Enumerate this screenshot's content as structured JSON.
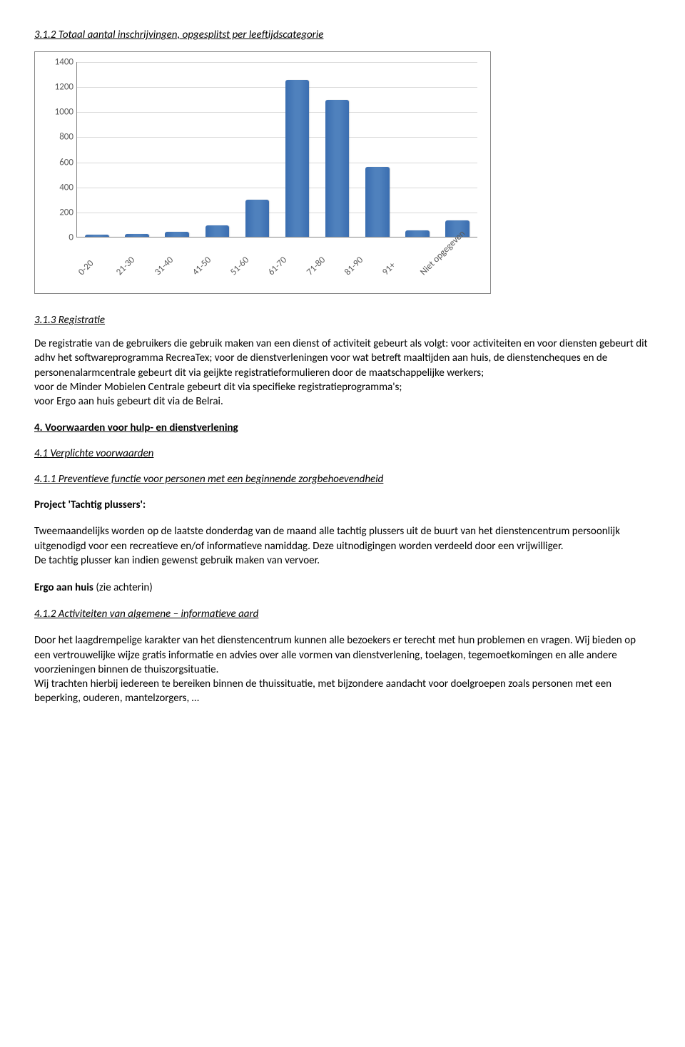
{
  "section_312_title": "3.1.2  Totaal aantal inschrijvingen, opgesplitst per  leeftijdscategorie",
  "chart": {
    "type": "bar",
    "categories": [
      "0-20",
      "21-30",
      "31-40",
      "41-50",
      "51-60",
      "61-70",
      "71-80",
      "81-90",
      "91+",
      "Niet opgegeven"
    ],
    "values": [
      20,
      25,
      40,
      90,
      300,
      1260,
      1100,
      560,
      50,
      130
    ],
    "ylim": [
      0,
      1400
    ],
    "ytick_step": 200,
    "yticks": [
      "0",
      "200",
      "400",
      "600",
      "800",
      "1000",
      "1200",
      "1400"
    ],
    "bar_color": "#4f81bd",
    "grid_color": "#d9d9d9",
    "axis_color": "#888888",
    "text_color": "#595959",
    "background_color": "#ffffff",
    "tick_fontsize": 13,
    "xtick_rotation": -45
  },
  "section_313_title": "3.1.3  Registratie",
  "registratie_para": "De registratie van de gebruikers die gebruik maken van een dienst of activiteit gebeurt als volgt: voor activiteiten en voor diensten gebeurt dit adhv het softwareprogramma RecreaTex; voor de dienstverleningen voor wat betreft maaltijden aan huis, de dienstencheques en de personenalarmcentrale gebeurt dit via geijkte registratieformulieren door de maatschappelijke werkers;\nvoor de Minder Mobielen Centrale gebeurt dit via specifieke registratieprogramma's;\nvoor Ergo aan huis gebeurt dit via de Belrai.",
  "section_4_title": "4. Voorwaarden voor  hulp- en dienstverlening",
  "section_41_title": "4.1 Verplichte voorwaarden",
  "section_411_title": "4.1.1  Preventieve functie voor personen met een beginnende zorgbehoevendheid",
  "project_label": "Project 'Tachtig plussers':",
  "tachtig_para1": "Tweemaandelijks worden op de laatste donderdag van de maand alle tachtig plussers uit de buurt van het dienstencentrum persoonlijk uitgenodigd voor een recreatieve en/of informatieve namiddag. Deze uitnodigingen worden verdeeld door een vrijwilliger.\nDe tachtig plusser kan indien gewenst gebruik maken van vervoer.",
  "ergo_label": "Ergo aan huis",
  "ergo_suffix": " (zie achterin)",
  "section_412_title": "4.1.2  Activiteiten van algemene –  informatieve aard",
  "last_para": "Door het laagdrempelige karakter van het dienstencentrum kunnen alle bezoekers er terecht met hun problemen en vragen. Wij bieden op een vertrouwelijke wijze gratis informatie en advies over alle vormen van dienstverlening, toelagen, tegemoetkomingen en alle andere voorzieningen binnen de thuiszorgsituatie.\nWij trachten hierbij iedereen te bereiken binnen de thuissituatie, met bijzondere aandacht voor doelgroepen zoals personen met een beperking, ouderen, mantelzorgers, …"
}
